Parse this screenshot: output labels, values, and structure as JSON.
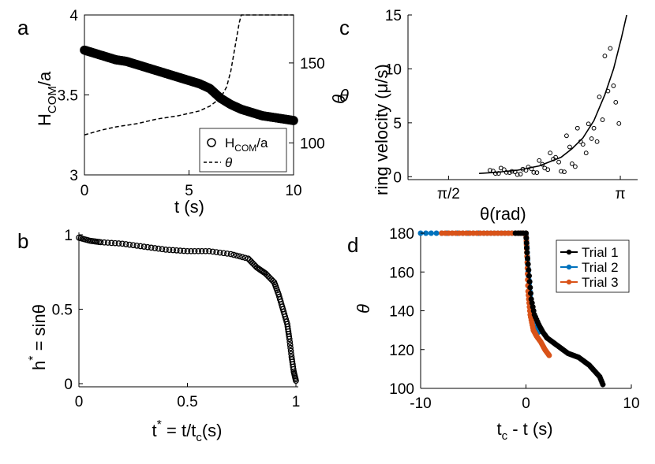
{
  "chart_data": [
    {
      "panel": "a",
      "type": "scatter",
      "xlabel": "t (s)",
      "ylabel_main": "H",
      "ylabel_sub": "COM",
      "ylabel_tail": "/a",
      "ylabel_right": "θ",
      "xlim": [
        0,
        10
      ],
      "ylim": [
        3,
        4
      ],
      "y2lim": [
        80,
        180
      ],
      "xticks": [
        "0",
        "5",
        "10"
      ],
      "yticks": [
        "3",
        "3.5",
        "4"
      ],
      "y2ticks": [
        "100",
        "150"
      ],
      "legend": [
        "H_COM/a",
        "θ"
      ],
      "legend_main": "H",
      "legend_sub": "COM",
      "legend_tail": "/a",
      "legend_theta": "θ",
      "series": [
        {
          "name": "H_COM/a",
          "x": [
            0,
            0.5,
            1,
            1.5,
            2,
            2.5,
            3,
            3.5,
            4,
            4.5,
            5,
            5.5,
            6,
            6.5,
            7,
            7.5,
            8,
            8.5,
            9,
            9.5,
            10
          ],
          "y": [
            3.78,
            3.76,
            3.74,
            3.72,
            3.71,
            3.69,
            3.67,
            3.65,
            3.63,
            3.61,
            3.59,
            3.57,
            3.54,
            3.48,
            3.44,
            3.41,
            3.39,
            3.37,
            3.36,
            3.35,
            3.34
          ]
        },
        {
          "name": "θ",
          "x": [
            0,
            0.8,
            1.5,
            2.5,
            3.5,
            4.5,
            5.5,
            6.0,
            6.5,
            6.8,
            7.0,
            7.2,
            7.4,
            7.5,
            10
          ],
          "y": [
            105,
            108,
            110,
            112,
            115,
            117,
            120,
            123,
            128,
            135,
            145,
            160,
            175,
            180,
            180
          ]
        }
      ]
    },
    {
      "panel": "b",
      "type": "scatter",
      "xlabel": "t* = t/tc(s)",
      "xlabel_pre": "t",
      "xlabel_star": "*",
      "xlabel_mid": " = t/t",
      "xlabel_sub": "c",
      "xlabel_tail": "(s)",
      "ylabel_pre": "h",
      "ylabel_star": "*",
      "ylabel_tail": " = sinθ",
      "xlim": [
        0,
        1
      ],
      "ylim": [
        0,
        1
      ],
      "xticks": [
        "0",
        "0.5",
        "1"
      ],
      "yticks": [
        "0",
        "0.5",
        "1"
      ],
      "series": [
        {
          "name": "h*",
          "x": [
            0,
            0.05,
            0.1,
            0.2,
            0.3,
            0.4,
            0.5,
            0.6,
            0.7,
            0.78,
            0.82,
            0.86,
            0.9,
            0.92,
            0.94,
            0.96,
            0.97,
            0.98,
            0.99,
            1.0
          ],
          "y": [
            0.98,
            0.96,
            0.95,
            0.94,
            0.92,
            0.9,
            0.89,
            0.89,
            0.87,
            0.84,
            0.78,
            0.74,
            0.68,
            0.6,
            0.5,
            0.4,
            0.3,
            0.18,
            0.08,
            0.02
          ]
        }
      ]
    },
    {
      "panel": "c",
      "type": "scatter",
      "xlabel": "θ(rad)",
      "ylabel": "ring velocity (μ/s)",
      "ylabel_left": "θ",
      "xlim": [
        1.2,
        3.3
      ],
      "ylim": [
        -1,
        15
      ],
      "xticks": [
        "π/2",
        "π"
      ],
      "xtick_values": [
        1.5708,
        3.1416
      ],
      "yticks": [
        "0",
        "5",
        "10",
        "15"
      ],
      "series": [
        {
          "name": "data",
          "x": [
            1.95,
            2.0,
            2.05,
            2.1,
            2.15,
            2.2,
            2.25,
            2.3,
            2.35,
            2.4,
            2.45,
            2.5,
            2.55,
            2.6,
            2.65,
            2.7,
            2.75,
            2.8,
            2.85,
            2.9,
            2.95,
            3.0,
            3.05,
            3.1
          ],
          "y": [
            0.6,
            0.3,
            0.8,
            0.4,
            0.5,
            0.2,
            0.7,
            0.9,
            0.4,
            1.5,
            0.8,
            2.2,
            1.8,
            0.5,
            3.8,
            1.2,
            4.5,
            3.0,
            4.9,
            4.5,
            7.4,
            11.2,
            11.9,
            6.9
          ]
        },
        {
          "name": "fit",
          "x": [
            1.85,
            2.0,
            2.2,
            2.4,
            2.6,
            2.7,
            2.8,
            2.9,
            3.0,
            3.08,
            3.15,
            3.2
          ],
          "y": [
            0.3,
            0.4,
            0.6,
            1.0,
            1.8,
            2.6,
            3.6,
            5.2,
            7.6,
            10.0,
            12.8,
            15.0
          ]
        }
      ]
    },
    {
      "panel": "d",
      "type": "line",
      "xlabel": "tc - t (s)",
      "xlabel_pre": "t",
      "xlabel_sub": "c",
      "xlabel_tail": " - t (s)",
      "ylabel": "θ",
      "xlim": [
        -10,
        10
      ],
      "ylim": [
        100,
        180
      ],
      "xticks": [
        "-10",
        "0",
        "10"
      ],
      "yticks": [
        "100",
        "120",
        "140",
        "160",
        "180"
      ],
      "series": [
        {
          "name": "Trial 1",
          "color": "#000000",
          "x": [
            -1,
            0,
            0.1,
            0.3,
            0.5,
            0.8,
            1.2,
            1.6,
            2.0,
            2.5,
            3.0,
            3.5,
            4.0,
            4.5,
            5.0,
            5.5,
            6.0,
            6.5,
            7.0,
            7.3
          ],
          "y": [
            180,
            180,
            170,
            158,
            146,
            138,
            133,
            129,
            126,
            124,
            122,
            120,
            118,
            117,
            116,
            114,
            112,
            109,
            106,
            102
          ]
        },
        {
          "name": "Trial 2",
          "color": "#0072BD",
          "x": [
            -10,
            -7,
            -4,
            -2,
            0,
            0.1,
            0.2,
            0.4,
            0.6,
            0.9,
            1.2
          ],
          "y": [
            180,
            180,
            180,
            180,
            180,
            172,
            160,
            148,
            138,
            133,
            129
          ]
        },
        {
          "name": "Trial 3",
          "color": "#D95319",
          "x": [
            -8,
            -6,
            -4,
            -2,
            0,
            0.1,
            0.2,
            0.4,
            0.7,
            1.0,
            1.4,
            1.8,
            2.2
          ],
          "y": [
            180,
            180,
            180,
            180,
            180,
            168,
            150,
            138,
            130,
            127,
            124,
            120,
            117
          ]
        }
      ]
    }
  ],
  "panel_letters": {
    "a": "a",
    "b": "b",
    "c": "c",
    "d": "d"
  }
}
